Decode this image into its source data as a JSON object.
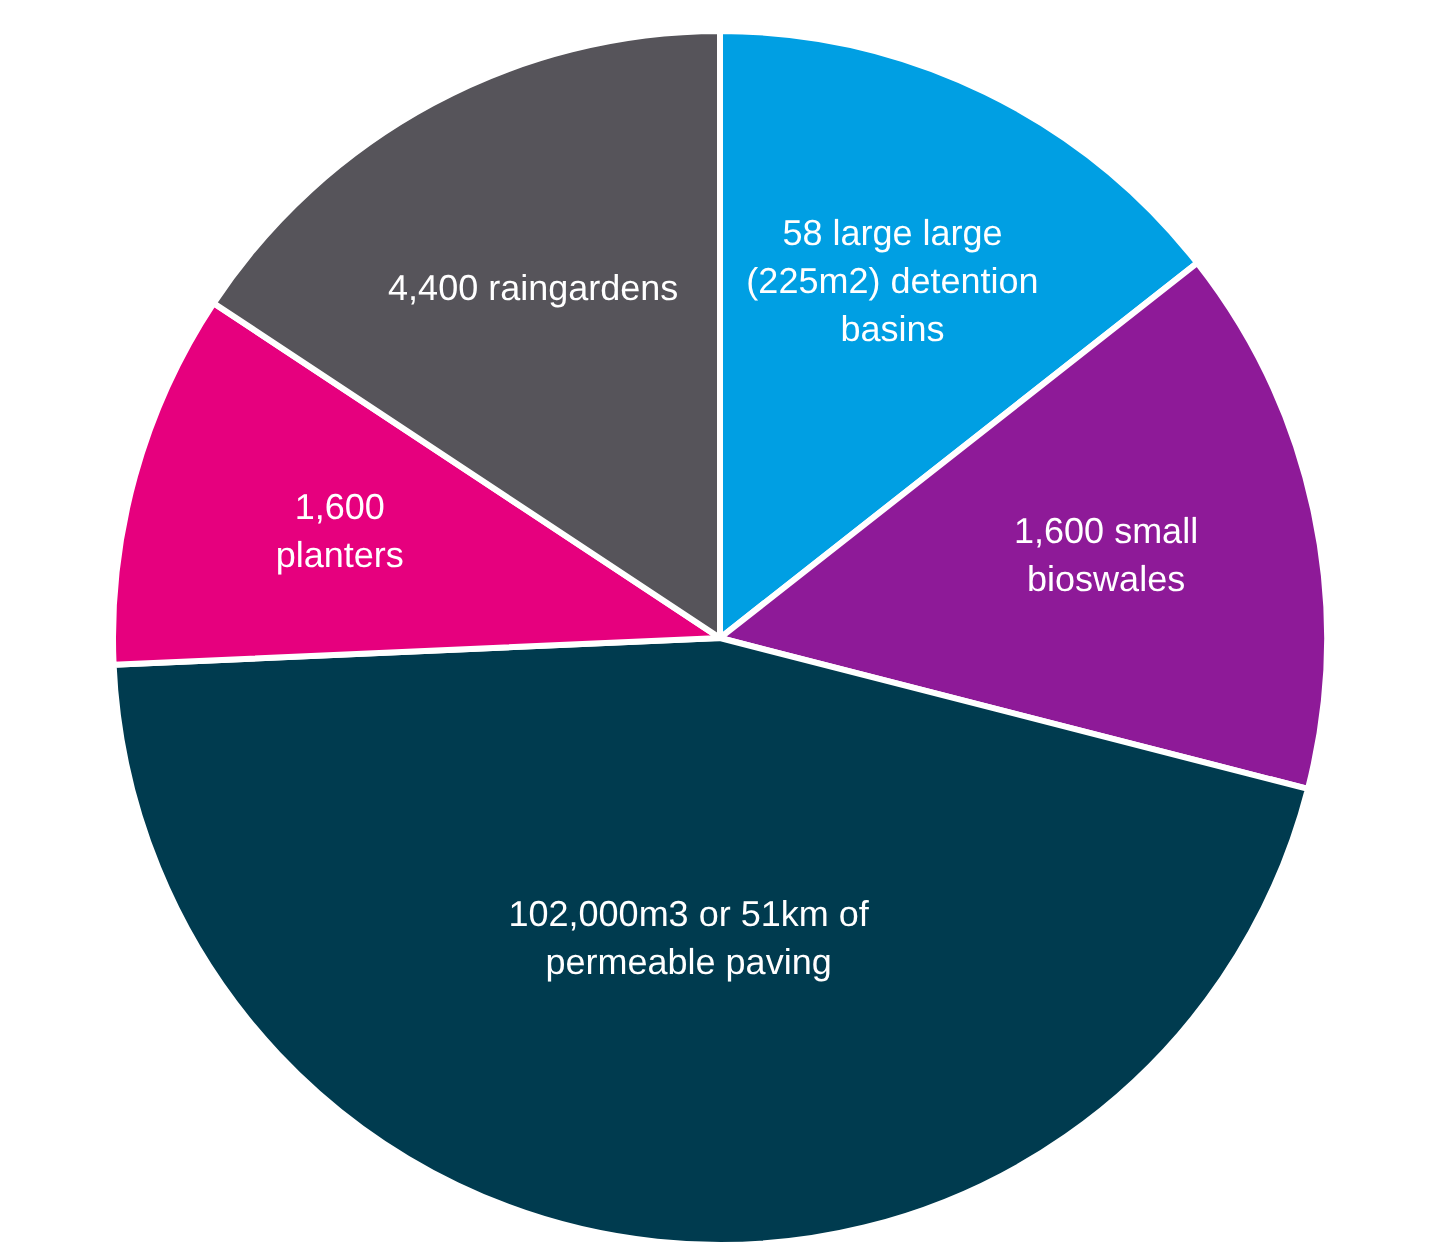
{
  "chart_data": {
    "type": "pie",
    "categories": [
      "58 large large\n(225m2) detention\nbasins",
      "1,600 small\nbioswales",
      "102,000m3 or 51km of\npermeable paving",
      "1,600\nplanters",
      "4,400 raingardens"
    ],
    "values": [
      14.4,
      14.6,
      45.3,
      10.0,
      15.7
    ],
    "colors": [
      "#009fe3",
      "#8e1a98",
      "#003b4f",
      "#e6007e",
      "#56545a"
    ],
    "legend": false
  }
}
